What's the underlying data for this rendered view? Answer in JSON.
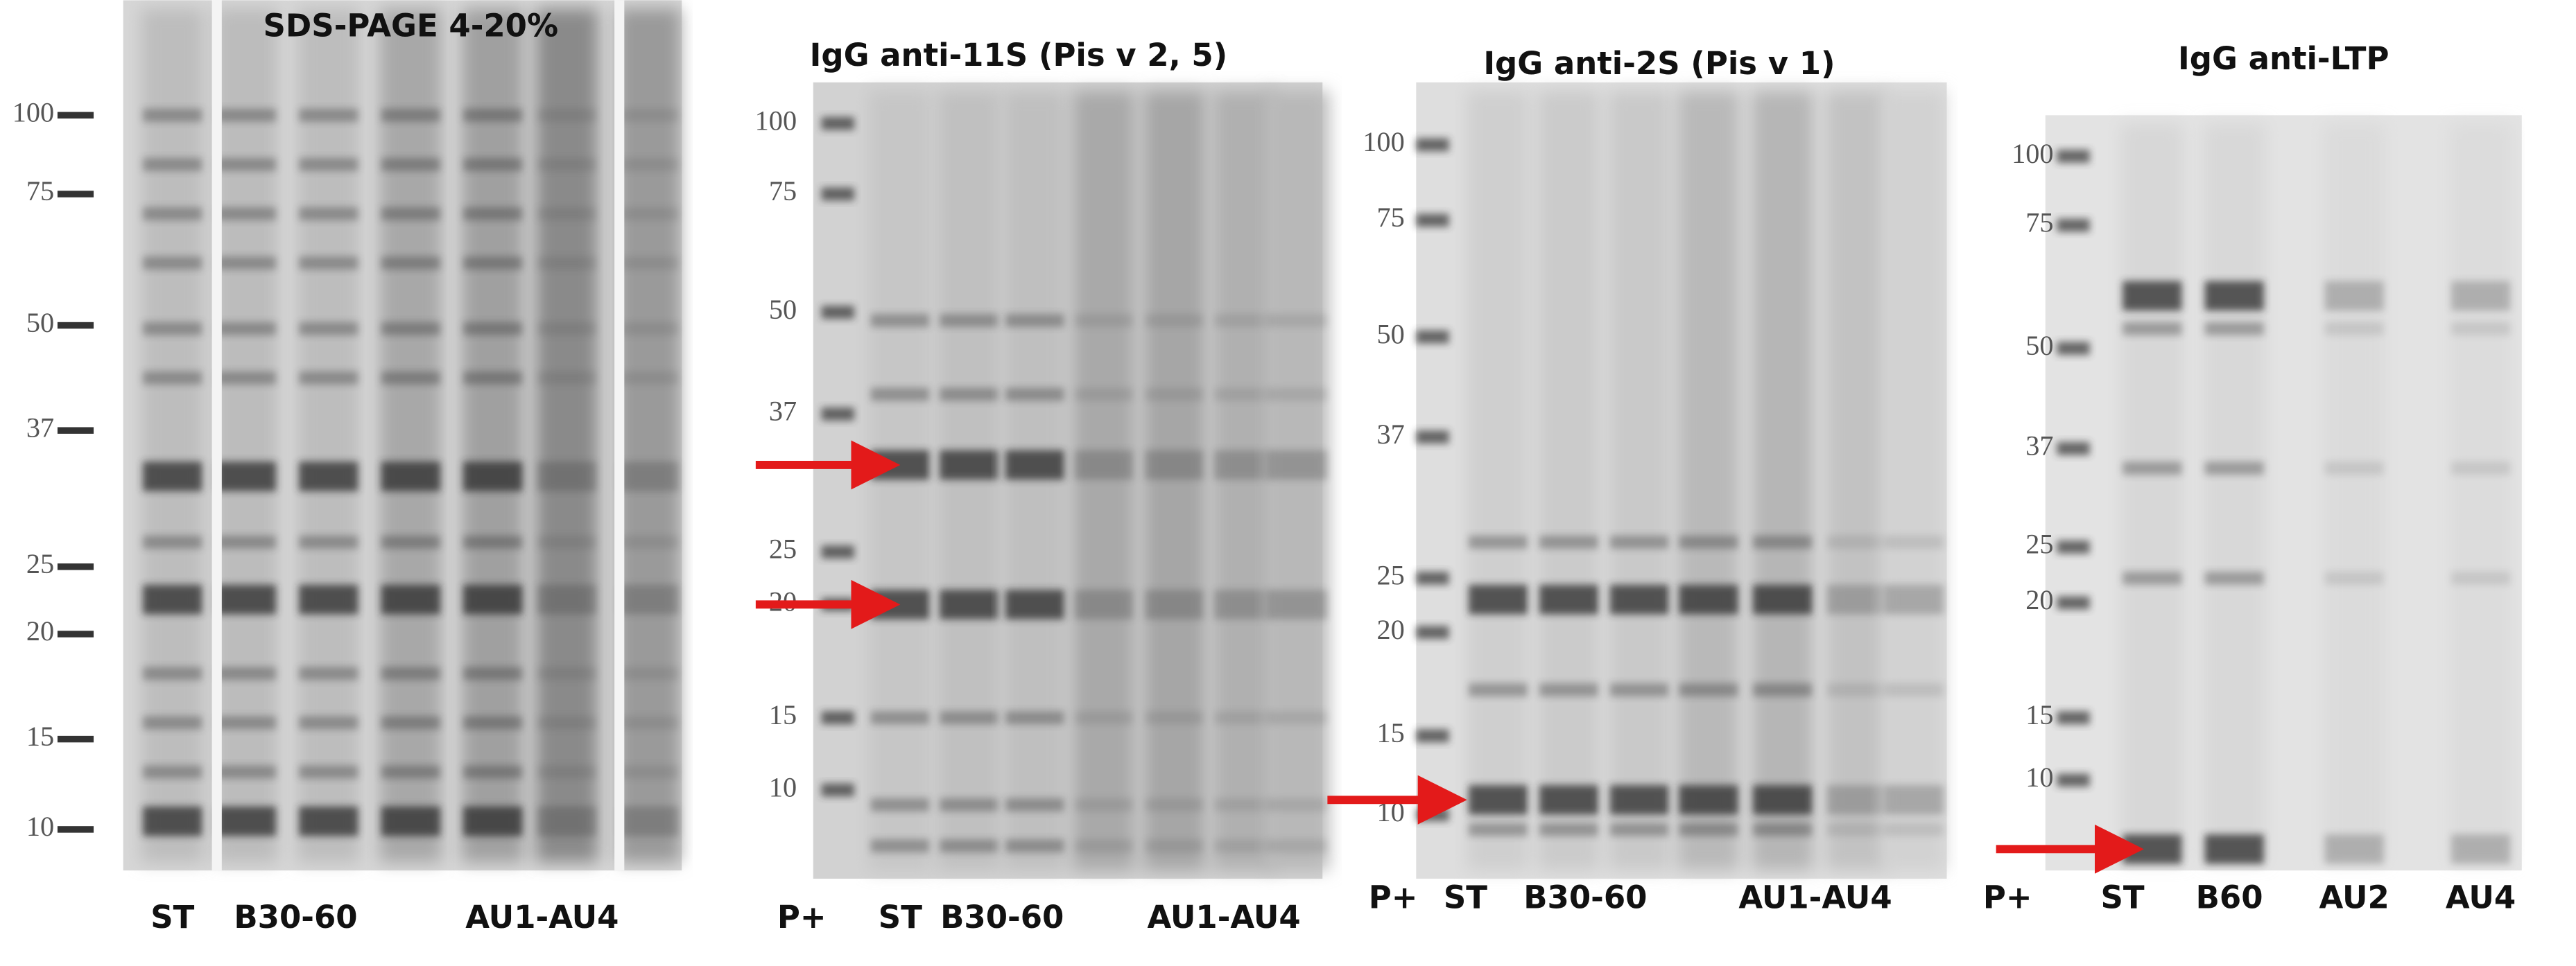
{
  "panels": [
    {
      "title": "SDS-PAGE 4-20%",
      "markers": [
        "100",
        "75",
        "50",
        "37",
        "25",
        "20",
        "15",
        "10"
      ],
      "lanes": [
        "ST",
        "B30-60",
        "AU1-AU4"
      ]
    },
    {
      "title": "IgG anti-11S (Pis v 2, 5)",
      "markers": [
        "100",
        "75",
        "50",
        "37",
        "25",
        "20",
        "15",
        "10"
      ],
      "lanes": [
        "P+",
        "ST",
        "B30-60",
        "AU1-AU4"
      ]
    },
    {
      "title": "IgG anti-2S (Pis v 1)",
      "markers": [
        "100",
        "75",
        "50",
        "37",
        "25",
        "20",
        "15",
        "10"
      ],
      "lanes": [
        "P+",
        "ST",
        "B30-60",
        "AU1-AU4"
      ]
    },
    {
      "title": "IgG anti-LTP",
      "markers": [
        "100",
        "75",
        "50",
        "37",
        "25",
        "20",
        "15",
        "10"
      ],
      "lanes": [
        "P+",
        "ST",
        "B60",
        "AU2",
        "AU4"
      ]
    }
  ]
}
